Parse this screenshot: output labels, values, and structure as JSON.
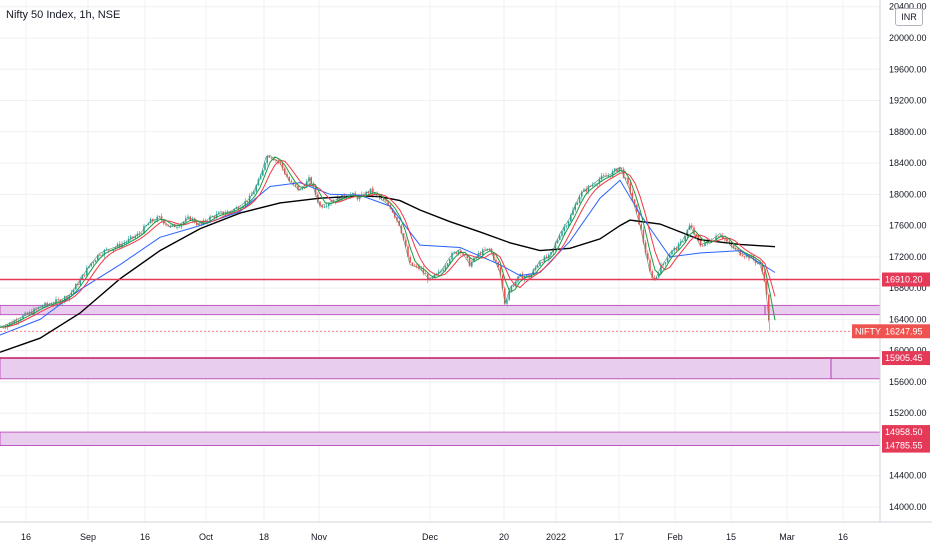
{
  "title": "Nifty 50 Index, 1h, NSE",
  "currency_button": "INR",
  "colors": {
    "red_line": "#e53958",
    "purple_line": "#c2185b",
    "zone_fill": "#e9cdee",
    "zone_border": "#b23bb3",
    "price_badge": "#ef5350",
    "level_badge": "#e53958",
    "grid": "#eef0f3",
    "ma_black": "#000000",
    "ma_blue": "#2962ff",
    "ma_red": "#f23645",
    "ma_green": "#1b9c3f",
    "candle_up": "#26a69a",
    "candle_down": "#ef5350"
  },
  "chart_data": {
    "type": "line",
    "title": "Nifty 50 Index, 1h, NSE",
    "y_axis": {
      "ticks": [
        "14000.00",
        "14400.00",
        "14800.00",
        "15200.00",
        "15600.00",
        "16000.00",
        "16400.00",
        "16800.00",
        "17200.00",
        "17600.00",
        "18000.00",
        "18400.00",
        "18800.00",
        "19200.00",
        "19600.00",
        "20000.00",
        "20400.00"
      ],
      "ylim": [
        13800,
        20500
      ]
    },
    "x_axis": {
      "ticks": [
        "16",
        "Sep",
        "16",
        "Oct",
        "18",
        "Nov",
        "Dec",
        "20",
        "2022",
        "17",
        "Feb",
        "15",
        "Mar",
        "16"
      ]
    },
    "grid": true,
    "price_label": {
      "symbol": "NIFTY",
      "value": "16247.95"
    },
    "horizontal_levels": [
      {
        "label": "16910.20",
        "value": 16910.2,
        "color": "#e53958"
      },
      {
        "label": "15905.45",
        "value": 15905.45,
        "color": "#c2185b"
      },
      {
        "label": "14958.50",
        "value": 14958.5,
        "color": "#c2185b"
      },
      {
        "label": "14785.55",
        "value": 14785.55,
        "color": "#c2185b"
      }
    ],
    "zones": [
      {
        "top": 16580,
        "bottom": 16460
      },
      {
        "top": 15905.45,
        "bottom": 15640
      },
      {
        "top": 14958.5,
        "bottom": 14785.55
      }
    ],
    "series": [
      {
        "type": "price",
        "x": [
          0,
          10,
          20,
          30,
          40,
          50,
          60,
          70,
          80,
          90,
          100,
          110,
          120,
          130,
          140,
          150,
          160,
          170,
          180,
          190,
          200,
          210,
          220,
          230,
          240,
          250,
          260,
          266,
          270,
          280,
          290,
          300,
          310,
          320,
          330,
          340,
          350,
          360,
          370,
          380,
          390,
          400,
          410,
          420,
          430,
          440,
          450,
          460,
          470,
          480,
          490,
          500,
          505,
          510,
          520,
          530,
          540,
          550,
          560,
          570,
          580,
          590,
          600,
          610,
          620,
          630,
          640,
          650,
          655,
          660,
          670,
          680,
          690,
          700,
          710,
          720,
          730,
          740,
          750,
          760,
          765,
          770
        ],
        "values": [
          16300,
          16350,
          16420,
          16480,
          16560,
          16600,
          16640,
          16720,
          16900,
          17100,
          17250,
          17300,
          17350,
          17420,
          17500,
          17650,
          17700,
          17580,
          17620,
          17700,
          17600,
          17700,
          17750,
          17780,
          17850,
          17950,
          18200,
          18480,
          18500,
          18400,
          18150,
          18050,
          18200,
          17850,
          17900,
          17950,
          18000,
          17950,
          18050,
          17950,
          17850,
          17600,
          17100,
          17050,
          16900,
          17000,
          17200,
          17300,
          17100,
          17250,
          17300,
          17000,
          16600,
          16800,
          16950,
          16950,
          17150,
          17200,
          17500,
          17700,
          18000,
          18100,
          18200,
          18250,
          18350,
          18050,
          17600,
          17000,
          16900,
          17050,
          17250,
          17350,
          17600,
          17350,
          17400,
          17500,
          17350,
          17250,
          17200,
          17100,
          16900,
          16250
        ]
      },
      {
        "type": "moving-average",
        "color": "#000000",
        "x": [
          0,
          40,
          80,
          120,
          160,
          200,
          240,
          280,
          320,
          360,
          380,
          400,
          420,
          450,
          480,
          510,
          540,
          570,
          600,
          620,
          630,
          660,
          700,
          740,
          775
        ],
        "values": [
          15980,
          16160,
          16480,
          16920,
          17280,
          17560,
          17760,
          17890,
          17950,
          17980,
          17970,
          17920,
          17800,
          17650,
          17520,
          17380,
          17280,
          17310,
          17430,
          17600,
          17670,
          17620,
          17420,
          17360,
          17330
        ]
      },
      {
        "type": "moving-average",
        "color": "#2962ff",
        "x": [
          0,
          40,
          80,
          120,
          160,
          200,
          240,
          270,
          300,
          330,
          360,
          390,
          420,
          460,
          500,
          520,
          540,
          570,
          600,
          620,
          640,
          670,
          700,
          740,
          775
        ],
        "values": [
          16200,
          16400,
          16780,
          17100,
          17450,
          17600,
          17780,
          18100,
          18150,
          18000,
          17990,
          17850,
          17350,
          17320,
          17100,
          16960,
          17000,
          17400,
          17950,
          18180,
          17750,
          17200,
          17250,
          17280,
          17000
        ]
      }
    ]
  }
}
